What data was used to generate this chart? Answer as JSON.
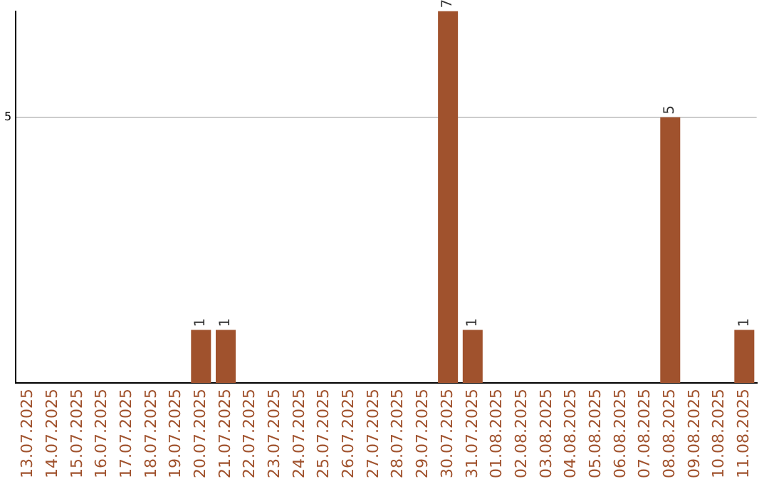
{
  "chart_data": {
    "type": "bar",
    "categories": [
      "13.07.2025",
      "14.07.2025",
      "15.07.2025",
      "16.07.2025",
      "17.07.2025",
      "18.07.2025",
      "19.07.2025",
      "20.07.2025",
      "21.07.2025",
      "22.07.2025",
      "23.07.2025",
      "24.07.2025",
      "25.07.2025",
      "26.07.2025",
      "27.07.2025",
      "28.07.2025",
      "29.07.2025",
      "30.07.2025",
      "31.07.2025",
      "01.08.2025",
      "02.08.2025",
      "03.08.2025",
      "04.08.2025",
      "05.08.2025",
      "06.08.2025",
      "07.08.2025",
      "08.08.2025",
      "09.08.2025",
      "10.08.2025",
      "11.08.2025"
    ],
    "values": [
      0,
      0,
      0,
      0,
      0,
      0,
      0,
      1,
      1,
      0,
      0,
      0,
      0,
      0,
      0,
      0,
      0,
      7,
      1,
      0,
      0,
      0,
      0,
      0,
      0,
      0,
      5,
      0,
      0,
      1
    ],
    "value_labels": [
      null,
      null,
      null,
      null,
      null,
      null,
      null,
      "1",
      "1",
      null,
      null,
      null,
      null,
      null,
      null,
      null,
      null,
      "7",
      "1",
      null,
      null,
      null,
      null,
      null,
      null,
      null,
      "5",
      null,
      null,
      "1"
    ],
    "color": "#a0522d",
    "ylim": [
      0,
      7
    ],
    "yticks": [
      5
    ],
    "grid": "y",
    "legend": false
  }
}
